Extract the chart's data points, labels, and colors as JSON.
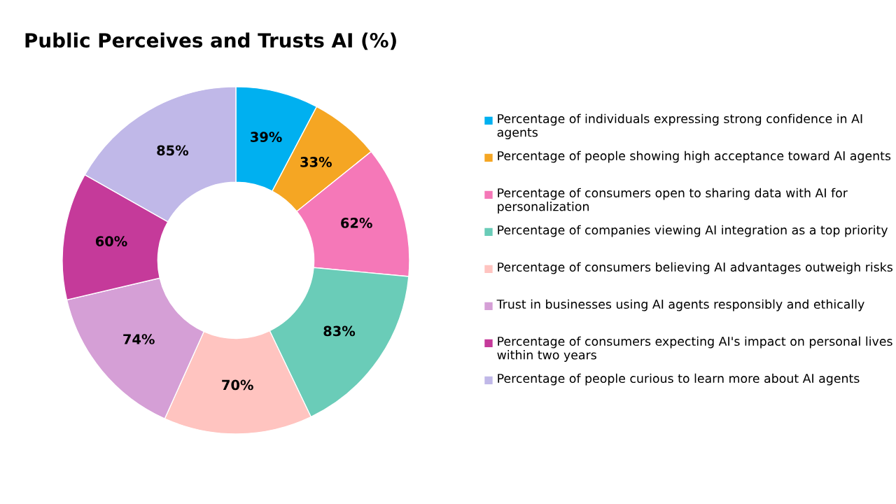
{
  "chart_data": {
    "type": "donut",
    "title": "Public Perceives and Trusts AI (%)",
    "categories": [
      "Percentage of individuals expressing strong confidence in AI agents",
      "Percentage of people showing high acceptance toward AI agents",
      "Percentage of consumers open to sharing data with AI for personalization",
      "Percentage of companies viewing AI integration as a top priority",
      "Percentage of consumers believing AI advantages outweigh risks",
      "Trust in businesses using AI agents responsibly and ethically",
      "Percentage of consumers expecting AI's impact on personal lives within two years",
      "Percentage of people curious to learn more about AI agents"
    ],
    "values": [
      39,
      33,
      62,
      83,
      70,
      74,
      60,
      85
    ],
    "value_labels": [
      "39%",
      "33%",
      "62%",
      "83%",
      "70%",
      "74%",
      "60%",
      "85%"
    ],
    "colors": [
      "#00b0f0",
      "#f5a623",
      "#f578b8",
      "#6accb8",
      "#ffc4c0",
      "#d59fd6",
      "#c53a9a",
      "#c0b8e8"
    ],
    "legend": "right"
  }
}
